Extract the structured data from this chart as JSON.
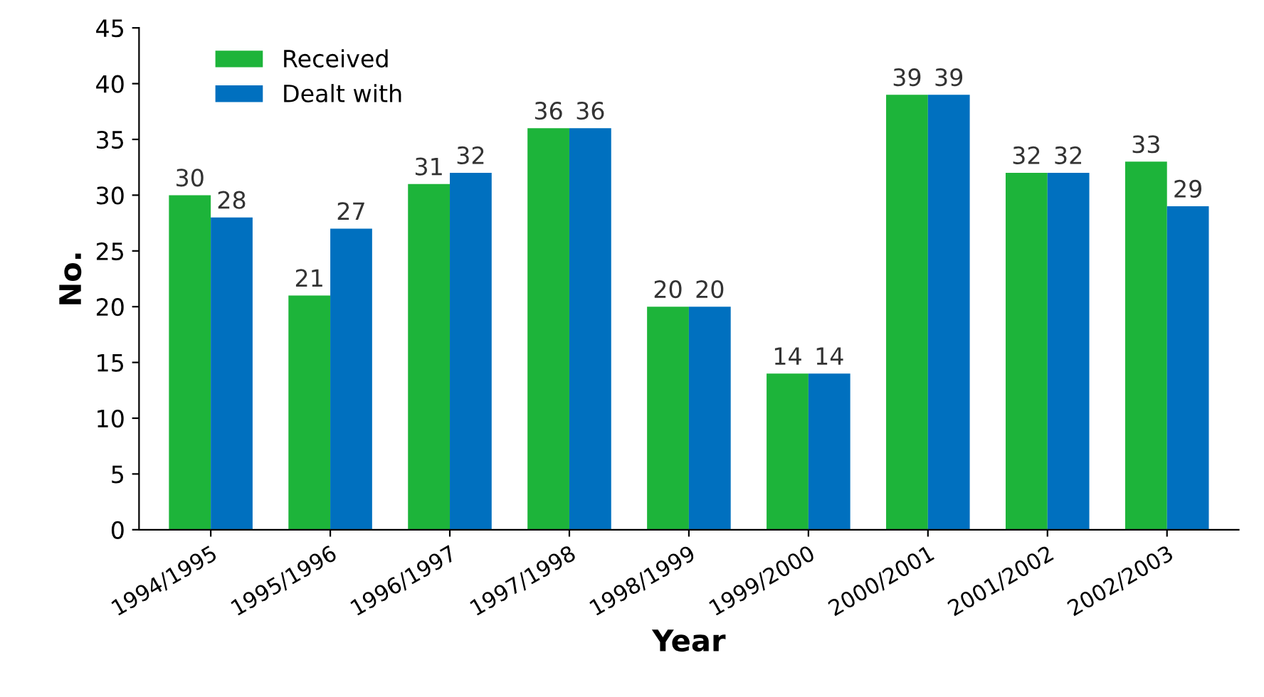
{
  "chart_data": {
    "type": "bar",
    "xlabel": "Year",
    "ylabel": "No.",
    "categories": [
      "1994/1995",
      "1995/1996",
      "1996/1997",
      "1997/1998",
      "1998/1999",
      "1999/2000",
      "2000/2001",
      "2001/2002",
      "2002/2003"
    ],
    "series": [
      {
        "name": "Received",
        "color": "#1db43a",
        "values": [
          30,
          21,
          31,
          36,
          20,
          14,
          39,
          32,
          33
        ]
      },
      {
        "name": "Dealt with",
        "color": "#0070bf",
        "values": [
          28,
          27,
          32,
          36,
          20,
          14,
          39,
          32,
          29
        ]
      }
    ],
    "ylim": [
      0,
      45
    ],
    "yticks": [
      0,
      5,
      10,
      15,
      20,
      25,
      30,
      35,
      40,
      45
    ],
    "grid": false,
    "legend": "top left",
    "data_labels": true
  }
}
